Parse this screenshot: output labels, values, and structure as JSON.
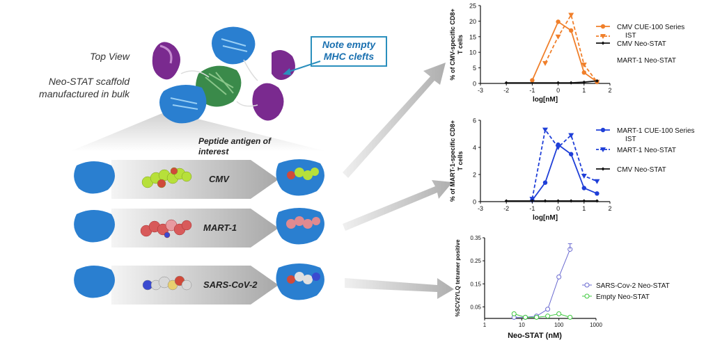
{
  "left": {
    "top_view": "Top View",
    "scaffold_line1": "Neo-STAT scaffold",
    "scaffold_line2": "manufactured in bulk",
    "note_line1": "Note empty",
    "note_line2": "MHC clefts",
    "peptide_line1": "Peptide antigen of",
    "peptide_line2": "interest",
    "rows": [
      {
        "label": "CMV"
      },
      {
        "label": "MART-1"
      },
      {
        "label": "SARS-CoV-2"
      }
    ]
  },
  "colors": {
    "cmv": "#f07f2a",
    "mart": "#1f3fd8",
    "sars": "#6a6ad0",
    "empty": "#3dc83d",
    "protein_blue": "#2a7fd0",
    "protein_purple": "#7a2a8f",
    "protein_green": "#3a8a4a",
    "note_border": "#2a8fbd"
  },
  "chart_data": [
    {
      "type": "line",
      "ylabel_line1": "% of CMV-specific CD8+",
      "ylabel_line2": "T cells",
      "xlabel": "log[nM]",
      "xlim": [
        -3,
        2
      ],
      "ylim": [
        0,
        25
      ],
      "xticks": [
        "-3",
        "-2",
        "-1",
        "0",
        "1",
        "2"
      ],
      "yticks": [
        "0",
        "5",
        "10",
        "15",
        "20",
        "25"
      ],
      "series": [
        {
          "name_line1": "CMV CUE-100 Series",
          "name_line2": "IST",
          "style": "solid",
          "marker": "circle",
          "color": "#f07f2a",
          "x": [
            -1,
            0,
            0.5,
            1,
            1.5
          ],
          "y": [
            1,
            19.8,
            17,
            3.5,
            0.5
          ]
        },
        {
          "name_line1": "",
          "name_line2": "",
          "style": "dashed",
          "marker": "triangle",
          "color": "#f07f2a",
          "x": [
            -0.5,
            0,
            0.5,
            1,
            1.5
          ],
          "y": [
            6.5,
            15,
            22,
            6,
            0.5
          ]
        },
        {
          "name_line1": "CMV Neo-STAT",
          "name_line2": "",
          "style": "solid",
          "marker": "diamond",
          "color": "#111111",
          "x": [
            -2,
            0,
            0.5,
            1,
            1.5
          ],
          "y": [
            0.2,
            0.2,
            0.2,
            0.4,
            0.8
          ]
        },
        {
          "name_line1": "MART-1 Neo-STAT",
          "name_line2": "",
          "style": "none",
          "marker": "none",
          "color": "#111111",
          "x": [],
          "y": []
        }
      ]
    },
    {
      "type": "line",
      "ylabel_line1": "% of MART-1-specific CD8+",
      "ylabel_line2": "T cells",
      "xlabel": "log[nM]",
      "xlim": [
        -3,
        2
      ],
      "ylim": [
        0,
        6
      ],
      "xticks": [
        "-3",
        "-2",
        "-1",
        "0",
        "1",
        "2"
      ],
      "yticks": [
        "0",
        "2",
        "4",
        "6"
      ],
      "series": [
        {
          "name_line1": "MART-1 CUE-100 Series",
          "name_line2": "IST",
          "style": "solid",
          "marker": "circle",
          "color": "#1f3fd8",
          "x": [
            -1,
            -0.5,
            0,
            0.5,
            1,
            1.5
          ],
          "y": [
            0.1,
            1.4,
            4.2,
            3.5,
            1,
            0.6
          ]
        },
        {
          "name_line1": "MART-1 Neo-STAT",
          "name_line2": "",
          "style": "dashed",
          "marker": "triangle",
          "color": "#1f3fd8",
          "x": [
            -1,
            -0.5,
            0,
            0.5,
            1,
            1.5
          ],
          "y": [
            0.2,
            5.3,
            4,
            4.9,
            1.9,
            1.5
          ]
        },
        {
          "name_line1": "CMV Neo-STAT",
          "name_line2": "",
          "style": "solid",
          "marker": "diamond",
          "color": "#111111",
          "x": [
            -2,
            -1,
            -0.5,
            0,
            0.5,
            1,
            1.5
          ],
          "y": [
            0.05,
            0.05,
            0.05,
            0.05,
            0.05,
            0.05,
            0.05
          ]
        }
      ]
    },
    {
      "type": "line",
      "ylabel": "%SCV2YLQ tetramer positive",
      "xlabel": "Neo-STAT (nM)",
      "xscale": "log",
      "xlim": [
        1,
        1000
      ],
      "ylim": [
        0,
        0.35
      ],
      "xticks": [
        "1",
        "10",
        "100",
        "1000"
      ],
      "yticks": [
        "0.05",
        "0.15",
        "0.25",
        "0.35"
      ],
      "series": [
        {
          "name": "SARS-Cov-2 Neo-STAT",
          "style": "solid",
          "marker": "open-circle",
          "color": "#6a6ad0",
          "x": [
            6.2,
            12.5,
            25,
            50,
            100,
            200
          ],
          "y": [
            0.005,
            0.005,
            0.01,
            0.04,
            0.18,
            0.3
          ]
        },
        {
          "name": "Empty Neo-STAT",
          "style": "solid",
          "marker": "open-circle",
          "color": "#3dc83d",
          "x": [
            6.2,
            12.5,
            25,
            50,
            100,
            200
          ],
          "y": [
            0.02,
            0.005,
            0.005,
            0.01,
            0.02,
            0.005
          ]
        }
      ]
    }
  ]
}
